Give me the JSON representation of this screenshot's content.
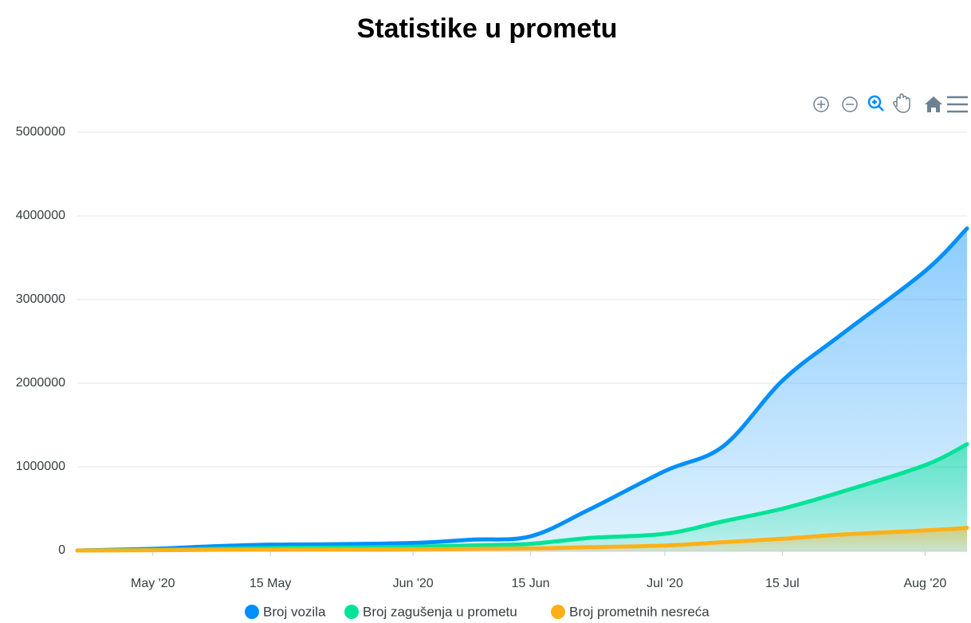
{
  "chart_data": {
    "type": "area",
    "title": "Statistike u prometu",
    "x": [
      "2020-04-22",
      "2020-05-01",
      "2020-05-08",
      "2020-05-15",
      "2020-05-22",
      "2020-06-01",
      "2020-06-08",
      "2020-06-15",
      "2020-06-22",
      "2020-07-01",
      "2020-07-08",
      "2020-07-15",
      "2020-07-22",
      "2020-08-01",
      "2020-08-06"
    ],
    "series": [
      {
        "name": "Broj vozila",
        "color": "#008ffb",
        "values": [
          0,
          20000,
          50000,
          70000,
          75000,
          90000,
          130000,
          170000,
          490000,
          950000,
          1250000,
          2030000,
          2580000,
          3340000,
          3850000
        ]
      },
      {
        "name": "Broj zagušenja u prometu",
        "color": "#00e396",
        "values": [
          0,
          8000,
          20000,
          30000,
          35000,
          45000,
          60000,
          80000,
          150000,
          200000,
          350000,
          500000,
          700000,
          1020000,
          1270000
        ]
      },
      {
        "name": "Broj prometnih nesreća",
        "color": "#feb019",
        "values": [
          0,
          3000,
          8000,
          10000,
          12000,
          15000,
          20000,
          25000,
          40000,
          60000,
          100000,
          140000,
          190000,
          240000,
          270000
        ]
      }
    ],
    "xlim": [
      "2020-04-22",
      "2020-08-06"
    ],
    "xticks": [
      {
        "value": "2020-05-01",
        "label": "May '20"
      },
      {
        "value": "2020-05-15",
        "label": "15 May"
      },
      {
        "value": "2020-06-01",
        "label": "Jun '20"
      },
      {
        "value": "2020-06-15",
        "label": "15 Jun"
      },
      {
        "value": "2020-07-01",
        "label": "Jul '20"
      },
      {
        "value": "2020-07-15",
        "label": "15 Jul"
      },
      {
        "value": "2020-08-01",
        "label": "Aug '20"
      }
    ],
    "ylim": [
      0,
      5000000
    ],
    "yticks": [
      0,
      1000000,
      2000000,
      3000000,
      4000000,
      5000000
    ],
    "grid": true,
    "legend": "bottom"
  }
}
